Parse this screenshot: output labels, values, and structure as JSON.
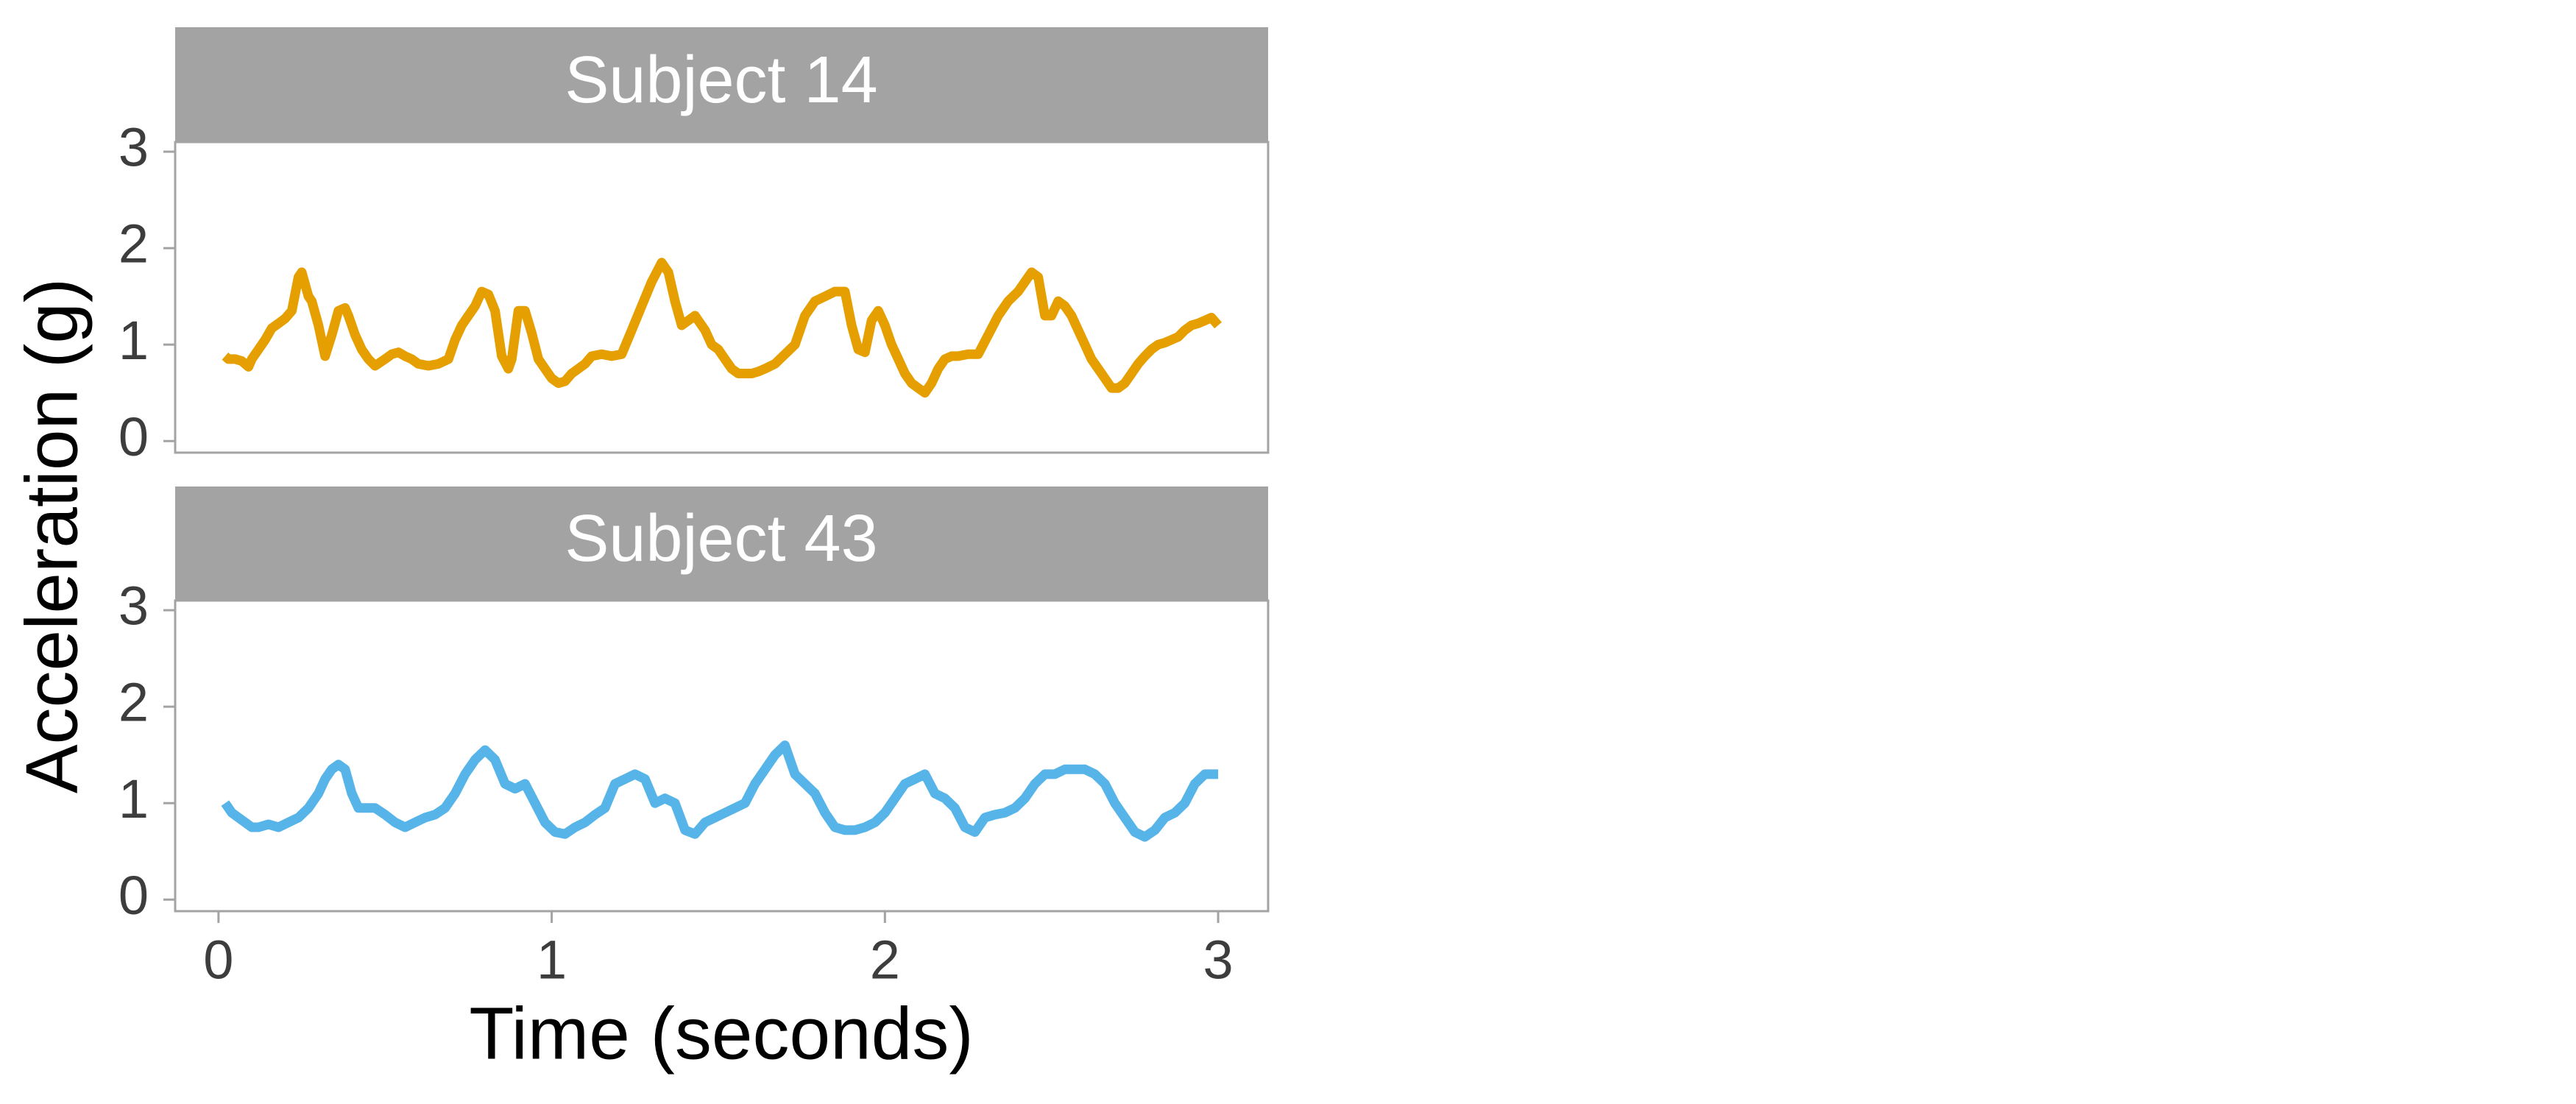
{
  "chart_data": {
    "type": "line",
    "title": "",
    "xlabel": "Time (seconds)",
    "ylabel": "Acceleration (g)",
    "xlim": [
      -0.13,
      3.15
    ],
    "ylim": [
      -0.12,
      3.1
    ],
    "x_ticks": [
      0,
      1,
      2,
      3
    ],
    "y_ticks": [
      0,
      1,
      2,
      3
    ],
    "grid": false,
    "legend": "none",
    "panels": [
      {
        "label": "Subject 14",
        "color": "#E69F00",
        "x": [
          0.02,
          0.03,
          0.05,
          0.07,
          0.09,
          0.1,
          0.12,
          0.14,
          0.16,
          0.18,
          0.2,
          0.22,
          0.24,
          0.25,
          0.27,
          0.28,
          0.3,
          0.32,
          0.34,
          0.36,
          0.38,
          0.39,
          0.41,
          0.43,
          0.45,
          0.47,
          0.5,
          0.52,
          0.54,
          0.56,
          0.58,
          0.6,
          0.63,
          0.66,
          0.69,
          0.71,
          0.73,
          0.75,
          0.77,
          0.79,
          0.81,
          0.83,
          0.85,
          0.87,
          0.88,
          0.9,
          0.92,
          0.94,
          0.96,
          0.98,
          1.0,
          1.02,
          1.04,
          1.06,
          1.08,
          1.1,
          1.12,
          1.15,
          1.18,
          1.21,
          1.24,
          1.27,
          1.3,
          1.33,
          1.35,
          1.37,
          1.39,
          1.41,
          1.43,
          1.44,
          1.46,
          1.48,
          1.5,
          1.52,
          1.54,
          1.56,
          1.58,
          1.6,
          1.62,
          1.64,
          1.67,
          1.7,
          1.73,
          1.76,
          1.79,
          1.82,
          1.85,
          1.88,
          1.9,
          1.92,
          1.94,
          1.96,
          1.98,
          2.0,
          2.02,
          2.04,
          2.06,
          2.08,
          2.1,
          2.12,
          2.14,
          2.16,
          2.18,
          2.2,
          2.22,
          2.25,
          2.28,
          2.31,
          2.34,
          2.37,
          2.4,
          2.42,
          2.44,
          2.46,
          2.48,
          2.5,
          2.52,
          2.54,
          2.56,
          2.58,
          2.6,
          2.62,
          2.64,
          2.66,
          2.68,
          2.7,
          2.72,
          2.74,
          2.76,
          2.78,
          2.8,
          2.82,
          2.84,
          2.86,
          2.88,
          2.9,
          2.92,
          2.94,
          2.96,
          2.98,
          3.0
        ],
        "y": [
          0.88,
          0.85,
          0.85,
          0.83,
          0.77,
          0.85,
          0.95,
          1.05,
          1.17,
          1.22,
          1.27,
          1.35,
          1.7,
          1.75,
          1.5,
          1.45,
          1.2,
          0.88,
          1.1,
          1.35,
          1.38,
          1.3,
          1.1,
          0.95,
          0.85,
          0.78,
          0.85,
          0.9,
          0.92,
          0.88,
          0.85,
          0.8,
          0.78,
          0.8,
          0.85,
          1.05,
          1.2,
          1.3,
          1.4,
          1.55,
          1.52,
          1.35,
          0.88,
          0.75,
          0.85,
          1.35,
          1.35,
          1.12,
          0.85,
          0.75,
          0.65,
          0.6,
          0.62,
          0.7,
          0.75,
          0.8,
          0.88,
          0.9,
          0.88,
          0.9,
          1.15,
          1.4,
          1.65,
          1.85,
          1.75,
          1.45,
          1.2,
          1.25,
          1.3,
          1.25,
          1.15,
          1.0,
          0.95,
          0.85,
          0.75,
          0.7,
          0.7,
          0.7,
          0.72,
          0.75,
          0.8,
          0.9,
          1.0,
          1.3,
          1.45,
          1.5,
          1.55,
          1.55,
          1.2,
          0.95,
          0.92,
          1.25,
          1.35,
          1.2,
          1.0,
          0.85,
          0.7,
          0.6,
          0.55,
          0.5,
          0.6,
          0.75,
          0.85,
          0.88,
          0.88,
          0.9,
          0.9,
          1.1,
          1.3,
          1.45,
          1.55,
          1.65,
          1.75,
          1.7,
          1.3,
          1.3,
          1.45,
          1.4,
          1.3,
          1.15,
          1.0,
          0.85,
          0.75,
          0.65,
          0.55,
          0.55,
          0.6,
          0.7,
          0.8,
          0.88,
          0.95,
          1.0,
          1.02,
          1.05,
          1.08,
          1.15,
          1.2,
          1.22,
          1.25,
          1.28,
          1.2
        ],
        "x_points": [
          0.02,
          0.05,
          0.09,
          0.14,
          0.2,
          0.25,
          0.28,
          0.34,
          0.38,
          0.45,
          0.5,
          0.56,
          0.63,
          0.71,
          0.79,
          0.87,
          0.92,
          1.0,
          1.08,
          1.15,
          1.24,
          1.33,
          1.37,
          1.43,
          1.5,
          1.56,
          1.64,
          1.73,
          1.82,
          1.9,
          1.96,
          2.0,
          2.08,
          2.16,
          2.22,
          2.31,
          2.4,
          2.46,
          2.54,
          2.6,
          2.66,
          2.74,
          2.82,
          2.9,
          2.96,
          3.0
        ]
      },
      {
        "label": "Subject 43",
        "color": "#56B4E9",
        "x": [
          0.02,
          0.04,
          0.06,
          0.08,
          0.1,
          0.12,
          0.15,
          0.18,
          0.21,
          0.24,
          0.27,
          0.3,
          0.32,
          0.34,
          0.36,
          0.38,
          0.4,
          0.42,
          0.44,
          0.47,
          0.5,
          0.53,
          0.56,
          0.59,
          0.62,
          0.65,
          0.68,
          0.71,
          0.74,
          0.77,
          0.8,
          0.83,
          0.86,
          0.89,
          0.92,
          0.95,
          0.98,
          1.01,
          1.04,
          1.07,
          1.1,
          1.13,
          1.16,
          1.19,
          1.22,
          1.25,
          1.28,
          1.31,
          1.34,
          1.37,
          1.4,
          1.43,
          1.46,
          1.49,
          1.52,
          1.55,
          1.58,
          1.61,
          1.64,
          1.67,
          1.7,
          1.73,
          1.76,
          1.79,
          1.82,
          1.85,
          1.88,
          1.91,
          1.94,
          1.97,
          2.0,
          2.03,
          2.06,
          2.09,
          2.12,
          2.15,
          2.18,
          2.21,
          2.24,
          2.27,
          2.3,
          2.33,
          2.36,
          2.39,
          2.42,
          2.45,
          2.48,
          2.51,
          2.54,
          2.57,
          2.6,
          2.63,
          2.66,
          2.69,
          2.72,
          2.75,
          2.78,
          2.81,
          2.84,
          2.87,
          2.9,
          2.93,
          2.96,
          3.0
        ],
        "y": [
          1.0,
          0.9,
          0.85,
          0.8,
          0.75,
          0.75,
          0.78,
          0.75,
          0.8,
          0.85,
          0.95,
          1.1,
          1.25,
          1.35,
          1.4,
          1.35,
          1.1,
          0.95,
          0.95,
          0.95,
          0.88,
          0.8,
          0.75,
          0.8,
          0.85,
          0.88,
          0.95,
          1.1,
          1.3,
          1.45,
          1.55,
          1.45,
          1.2,
          1.15,
          1.2,
          1.0,
          0.8,
          0.7,
          0.68,
          0.75,
          0.8,
          0.88,
          0.95,
          1.2,
          1.25,
          1.3,
          1.25,
          1.0,
          1.05,
          1.0,
          0.72,
          0.68,
          0.8,
          0.85,
          0.9,
          0.95,
          1.0,
          1.2,
          1.35,
          1.5,
          1.6,
          1.3,
          1.2,
          1.1,
          0.9,
          0.75,
          0.72,
          0.72,
          0.75,
          0.8,
          0.9,
          1.05,
          1.2,
          1.25,
          1.3,
          1.1,
          1.05,
          0.95,
          0.75,
          0.7,
          0.85,
          0.88,
          0.9,
          0.95,
          1.05,
          1.2,
          1.3,
          1.3,
          1.35,
          1.35,
          1.35,
          1.3,
          1.2,
          1.0,
          0.85,
          0.7,
          0.65,
          0.72,
          0.85,
          0.9,
          1.0,
          1.2,
          1.3,
          1.3
        ]
      }
    ]
  }
}
